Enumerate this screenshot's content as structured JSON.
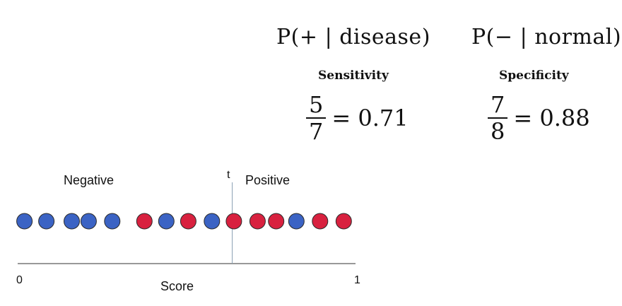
{
  "sensitivity": {
    "formula": "P(+ | disease)",
    "label": "Sensitivity",
    "numerator": "5",
    "denominator": "7",
    "result": "= 0.71"
  },
  "specificity": {
    "formula": "P(− | normal)",
    "label": "Specificity",
    "numerator": "7",
    "denominator": "8",
    "result": "= 0.88"
  },
  "scale": {
    "negative_label": "Negative",
    "positive_label": "Positive",
    "threshold_label": "t",
    "min_tick": "0",
    "max_tick": "1",
    "axis_label": "Score",
    "threshold": 0.635
  },
  "colors": {
    "normal": "#3B63C4",
    "disease": "#D8213F",
    "outline": "#2b2b2b",
    "threshold_line": "#8aa0b4",
    "axis": "#333333"
  },
  "points": [
    {
      "score": 0.02,
      "class": "normal"
    },
    {
      "score": 0.085,
      "class": "normal"
    },
    {
      "score": 0.16,
      "class": "normal"
    },
    {
      "score": 0.21,
      "class": "normal"
    },
    {
      "score": 0.28,
      "class": "normal"
    },
    {
      "score": 0.375,
      "class": "disease"
    },
    {
      "score": 0.44,
      "class": "normal"
    },
    {
      "score": 0.505,
      "class": "disease"
    },
    {
      "score": 0.575,
      "class": "normal"
    },
    {
      "score": 0.64,
      "class": "disease"
    },
    {
      "score": 0.71,
      "class": "disease"
    },
    {
      "score": 0.765,
      "class": "disease"
    },
    {
      "score": 0.825,
      "class": "normal"
    },
    {
      "score": 0.895,
      "class": "disease"
    },
    {
      "score": 0.965,
      "class": "disease"
    }
  ]
}
